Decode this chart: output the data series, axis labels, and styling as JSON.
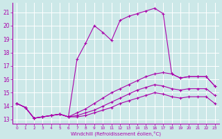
{
  "xlabel": "Windchill (Refroidissement éolien,°C)",
  "bg_color": "#cce8e8",
  "grid_color": "#ffffff",
  "line_color": "#aa00aa",
  "xlim": [
    -0.5,
    23.5
  ],
  "ylim": [
    12.7,
    21.7
  ],
  "xticks": [
    0,
    1,
    2,
    3,
    4,
    5,
    6,
    7,
    8,
    9,
    10,
    11,
    12,
    13,
    14,
    15,
    16,
    17,
    18,
    19,
    20,
    21,
    22,
    23
  ],
  "yticks": [
    13,
    14,
    15,
    16,
    17,
    18,
    19,
    20,
    21
  ],
  "series": [
    {
      "x": [
        0,
        1,
        2,
        3,
        4,
        5,
        6,
        7,
        8,
        9,
        10,
        11,
        12,
        13,
        14,
        15,
        16,
        17,
        18,
        19,
        20,
        21,
        22,
        23
      ],
      "y": [
        14.2,
        13.9,
        13.1,
        13.2,
        13.3,
        13.4,
        13.2,
        17.5,
        18.7,
        20.0,
        19.5,
        18.9,
        20.4,
        20.7,
        20.9,
        21.1,
        21.3,
        20.9,
        16.4,
        16.1,
        16.2,
        16.2,
        16.2,
        15.5
      ]
    },
    {
      "x": [
        0,
        1,
        2,
        3,
        4,
        5,
        6,
        7,
        8,
        9,
        10,
        11,
        12,
        13,
        14,
        15,
        16,
        17,
        18,
        19,
        20,
        21,
        22,
        23
      ],
      "y": [
        14.2,
        13.9,
        13.1,
        13.2,
        13.3,
        13.4,
        13.2,
        13.5,
        13.8,
        14.2,
        14.6,
        15.0,
        15.3,
        15.6,
        15.9,
        16.2,
        16.4,
        16.5,
        16.4,
        16.1,
        16.2,
        16.2,
        16.2,
        15.5
      ]
    },
    {
      "x": [
        0,
        1,
        2,
        3,
        4,
        5,
        6,
        7,
        8,
        9,
        10,
        11,
        12,
        13,
        14,
        15,
        16,
        17,
        18,
        19,
        20,
        21,
        22,
        23
      ],
      "y": [
        14.2,
        13.9,
        13.1,
        13.2,
        13.3,
        13.4,
        13.2,
        13.3,
        13.5,
        13.7,
        14.0,
        14.3,
        14.6,
        14.9,
        15.2,
        15.4,
        15.6,
        15.5,
        15.3,
        15.2,
        15.3,
        15.3,
        15.3,
        14.8
      ]
    },
    {
      "x": [
        0,
        1,
        2,
        3,
        4,
        5,
        6,
        7,
        8,
        9,
        10,
        11,
        12,
        13,
        14,
        15,
        16,
        17,
        18,
        19,
        20,
        21,
        22,
        23
      ],
      "y": [
        14.2,
        13.9,
        13.1,
        13.2,
        13.3,
        13.4,
        13.2,
        13.2,
        13.3,
        13.5,
        13.7,
        13.9,
        14.2,
        14.4,
        14.6,
        14.8,
        15.0,
        14.9,
        14.7,
        14.6,
        14.7,
        14.7,
        14.7,
        14.2
      ]
    }
  ]
}
